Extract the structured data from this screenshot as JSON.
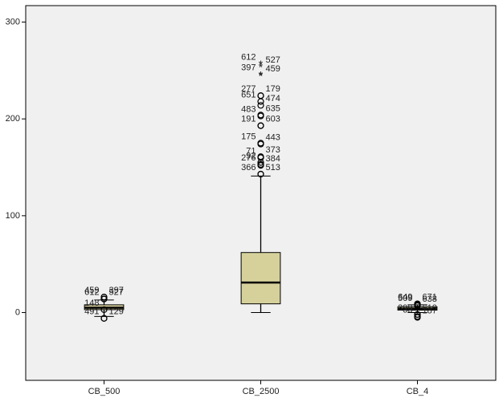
{
  "chart_data": {
    "type": "boxplot",
    "color": "#d6d09b",
    "background": "#f0f0f0",
    "categories": [
      "CB_500",
      "CB_2500",
      "CB_4"
    ],
    "boxes": [
      {
        "min": -4,
        "q1": 3,
        "median": 5,
        "q3": 8,
        "max": 13
      },
      {
        "min": 0,
        "q1": 9,
        "median": 31,
        "q3": 62,
        "max": 141
      },
      {
        "min": 0,
        "q1": 2.5,
        "median": 4,
        "q3": 6,
        "max": 8
      }
    ],
    "outliers": [
      [
        {
          "value": 16,
          "label": "459"
        },
        {
          "value": 16,
          "label": "397"
        },
        {
          "value": 14,
          "label": "612"
        },
        {
          "value": 14,
          "label": "527"
        },
        {
          "value": 3,
          "label": "148"
        },
        {
          "value": -6,
          "label": "129"
        },
        {
          "value": -6,
          "label": "491"
        }
      ],
      [
        {
          "value": 257,
          "label": "612",
          "extreme": true
        },
        {
          "value": 254,
          "label": "527",
          "extreme": true
        },
        {
          "value": 246,
          "label": "397",
          "extreme": true
        },
        {
          "value": 245,
          "label": "459",
          "extreme": true
        },
        {
          "value": 224,
          "label": "277"
        },
        {
          "value": 224,
          "label": "179"
        },
        {
          "value": 218,
          "label": "651"
        },
        {
          "value": 214,
          "label": "474"
        },
        {
          "value": 203,
          "label": "483"
        },
        {
          "value": 204,
          "label": "635"
        },
        {
          "value": 193,
          "label": "191"
        },
        {
          "value": 193,
          "label": "603"
        },
        {
          "value": 175,
          "label": "175"
        },
        {
          "value": 174,
          "label": "443"
        },
        {
          "value": 160,
          "label": "71"
        },
        {
          "value": 161,
          "label": "373"
        },
        {
          "value": 153,
          "label": "276"
        },
        {
          "value": 152,
          "label": "384"
        },
        {
          "value": 155,
          "label": "92"
        },
        {
          "value": 143,
          "label": "513"
        },
        {
          "value": 143,
          "label": "366"
        }
      ],
      [
        {
          "value": 9,
          "label": "649"
        },
        {
          "value": 9,
          "label": "671"
        },
        {
          "value": 8,
          "label": "509"
        },
        {
          "value": 7,
          "label": "638"
        },
        {
          "value": -2,
          "label": "390"
        },
        {
          "value": -2,
          "label": "610"
        },
        {
          "value": -4,
          "label": "33"
        },
        {
          "value": -5,
          "label": "187"
        }
      ]
    ],
    "ylim": [
      -70,
      317
    ],
    "yticks": [
      0,
      100,
      200,
      300
    ]
  }
}
